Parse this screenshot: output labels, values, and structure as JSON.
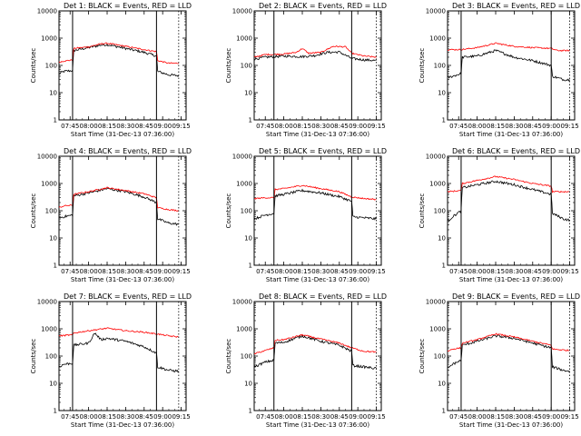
{
  "figure": {
    "common": {
      "ylabel": "Counts/sec",
      "xlabel": "Start Time (31-Dec-13 07:36:00)",
      "ylim": [
        1,
        10000
      ],
      "y_scale": "log",
      "y_ticks": [
        1,
        10,
        100,
        1000,
        10000
      ],
      "y_tick_labels": [
        "1",
        "10",
        "100",
        "1000",
        "10000"
      ],
      "x_ticks": [
        "07:45",
        "08:00",
        "08:15",
        "08:30",
        "08:45",
        "09:00",
        "09:15"
      ],
      "series_colors": {
        "events": "#000000",
        "lld": "#ff0000"
      }
    }
  },
  "chart_data": [
    {
      "type": "line",
      "title": "Det 1: BLACK = Events, RED = LLD",
      "xlim": [
        "07:36",
        "09:19"
      ],
      "vlines_solid": [
        "07:47",
        "08:55"
      ],
      "vlines_dotted": [
        "09:13"
      ],
      "series": [
        {
          "key": "events",
          "points": [
            [
              "07:36",
              50
            ],
            [
              "07:40",
              60
            ],
            [
              "07:47",
              65
            ],
            [
              "07:48",
              350
            ],
            [
              "08:00",
              450
            ],
            [
              "08:10",
              560
            ],
            [
              "08:15",
              580
            ],
            [
              "08:30",
              420
            ],
            [
              "08:45",
              300
            ],
            [
              "08:55",
              220
            ],
            [
              "08:56",
              60
            ],
            [
              "09:05",
              45
            ],
            [
              "09:13",
              42
            ]
          ]
        },
        {
          "key": "lld",
          "points": [
            [
              "07:36",
              130
            ],
            [
              "07:40",
              145
            ],
            [
              "07:47",
              160
            ],
            [
              "07:48",
              420
            ],
            [
              "08:00",
              480
            ],
            [
              "08:10",
              620
            ],
            [
              "08:15",
              650
            ],
            [
              "08:30",
              500
            ],
            [
              "08:45",
              380
            ],
            [
              "08:55",
              320
            ],
            [
              "08:56",
              150
            ],
            [
              "09:05",
              120
            ],
            [
              "09:13",
              120
            ]
          ]
        }
      ]
    },
    {
      "type": "line",
      "title": "Det 2: BLACK = Events, RED = LLD",
      "xlim": [
        "07:36",
        "09:19"
      ],
      "vlines_solid": [
        "07:52",
        "08:55"
      ],
      "vlines_dotted": [
        "09:15"
      ],
      "series": [
        {
          "key": "events",
          "points": [
            [
              "07:36",
              170
            ],
            [
              "07:45",
              200
            ],
            [
              "08:00",
              220
            ],
            [
              "08:15",
              210
            ],
            [
              "08:25",
              230
            ],
            [
              "08:35",
              300
            ],
            [
              "08:45",
              310
            ],
            [
              "08:55",
              180
            ],
            [
              "09:05",
              160
            ],
            [
              "09:15",
              150
            ]
          ]
        },
        {
          "key": "lld",
          "points": [
            [
              "07:36",
              200
            ],
            [
              "07:45",
              250
            ],
            [
              "08:00",
              260
            ],
            [
              "08:10",
              300
            ],
            [
              "08:15",
              420
            ],
            [
              "08:20",
              280
            ],
            [
              "08:30",
              300
            ],
            [
              "08:40",
              500
            ],
            [
              "08:50",
              480
            ],
            [
              "08:55",
              280
            ],
            [
              "09:05",
              220
            ],
            [
              "09:15",
              200
            ]
          ]
        }
      ]
    },
    {
      "type": "line",
      "title": "Det 3: BLACK = Events, RED = LLD",
      "xlim": [
        "07:36",
        "09:19"
      ],
      "vlines_solid": [
        "07:47",
        "09:00"
      ],
      "vlines_dotted": [
        "09:15"
      ],
      "series": [
        {
          "key": "events",
          "points": [
            [
              "07:36",
              35
            ],
            [
              "07:40",
              40
            ],
            [
              "07:47",
              50
            ],
            [
              "07:48",
              200
            ],
            [
              "08:00",
              220
            ],
            [
              "08:15",
              350
            ],
            [
              "08:30",
              200
            ],
            [
              "08:45",
              150
            ],
            [
              "09:00",
              100
            ],
            [
              "09:01",
              40
            ],
            [
              "09:10",
              30
            ],
            [
              "09:15",
              30
            ]
          ]
        },
        {
          "key": "lld",
          "points": [
            [
              "07:36",
              380
            ],
            [
              "07:47",
              380
            ],
            [
              "08:00",
              450
            ],
            [
              "08:15",
              650
            ],
            [
              "08:30",
              500
            ],
            [
              "08:45",
              450
            ],
            [
              "09:00",
              420
            ],
            [
              "09:05",
              350
            ],
            [
              "09:15",
              350
            ]
          ]
        }
      ]
    },
    {
      "type": "line",
      "title": "Det 4: BLACK = Events, RED = LLD",
      "xlim": [
        "07:36",
        "09:19"
      ],
      "vlines_solid": [
        "07:47",
        "08:55"
      ],
      "vlines_dotted": [
        "09:13"
      ],
      "series": [
        {
          "key": "events",
          "points": [
            [
              "07:36",
              55
            ],
            [
              "07:40",
              60
            ],
            [
              "07:47",
              70
            ],
            [
              "07:48",
              350
            ],
            [
              "08:00",
              450
            ],
            [
              "08:15",
              650
            ],
            [
              "08:30",
              500
            ],
            [
              "08:45",
              320
            ],
            [
              "08:55",
              200
            ],
            [
              "08:56",
              50
            ],
            [
              "09:05",
              35
            ],
            [
              "09:13",
              32
            ]
          ]
        },
        {
          "key": "lld",
          "points": [
            [
              "07:36",
              130
            ],
            [
              "07:40",
              150
            ],
            [
              "07:47",
              160
            ],
            [
              "07:48",
              400
            ],
            [
              "08:00",
              500
            ],
            [
              "08:15",
              700
            ],
            [
              "08:30",
              550
            ],
            [
              "08:45",
              420
            ],
            [
              "08:55",
              300
            ],
            [
              "08:56",
              130
            ],
            [
              "09:05",
              110
            ],
            [
              "09:13",
              100
            ]
          ]
        }
      ]
    },
    {
      "type": "line",
      "title": "Det 5: BLACK = Events, RED = LLD",
      "xlim": [
        "07:36",
        "09:19"
      ],
      "vlines_solid": [
        "07:52",
        "08:55"
      ],
      "vlines_dotted": [
        "09:15"
      ],
      "series": [
        {
          "key": "events",
          "points": [
            [
              "07:36",
              50
            ],
            [
              "07:45",
              70
            ],
            [
              "07:52",
              80
            ],
            [
              "07:53",
              350
            ],
            [
              "08:00",
              400
            ],
            [
              "08:15",
              550
            ],
            [
              "08:30",
              450
            ],
            [
              "08:45",
              330
            ],
            [
              "08:55",
              220
            ],
            [
              "08:56",
              60
            ],
            [
              "09:05",
              55
            ],
            [
              "09:15",
              50
            ]
          ]
        },
        {
          "key": "lld",
          "points": [
            [
              "07:36",
              280
            ],
            [
              "07:45",
              300
            ],
            [
              "07:52",
              300
            ],
            [
              "07:53",
              600
            ],
            [
              "08:00",
              650
            ],
            [
              "08:15",
              850
            ],
            [
              "08:30",
              650
            ],
            [
              "08:45",
              500
            ],
            [
              "08:55",
              320
            ],
            [
              "09:05",
              280
            ],
            [
              "09:15",
              260
            ]
          ]
        }
      ]
    },
    {
      "type": "line",
      "title": "Det 6: BLACK = Events, RED = LLD",
      "xlim": [
        "07:36",
        "09:19"
      ],
      "vlines_solid": [
        "07:47",
        "09:00"
      ],
      "vlines_dotted": [
        "09:15"
      ],
      "series": [
        {
          "key": "events",
          "points": [
            [
              "07:36",
              40
            ],
            [
              "07:40",
              60
            ],
            [
              "07:47",
              100
            ],
            [
              "07:48",
              700
            ],
            [
              "08:00",
              900
            ],
            [
              "08:15",
              1200
            ],
            [
              "08:30",
              900
            ],
            [
              "08:45",
              600
            ],
            [
              "09:00",
              400
            ],
            [
              "09:01",
              80
            ],
            [
              "09:10",
              50
            ],
            [
              "09:15",
              45
            ]
          ]
        },
        {
          "key": "lld",
          "points": [
            [
              "07:36",
              500
            ],
            [
              "07:47",
              550
            ],
            [
              "07:48",
              1000
            ],
            [
              "08:00",
              1300
            ],
            [
              "08:15",
              1800
            ],
            [
              "08:30",
              1400
            ],
            [
              "08:45",
              1000
            ],
            [
              "09:00",
              800
            ],
            [
              "09:01",
              500
            ],
            [
              "09:15",
              500
            ]
          ]
        }
      ]
    },
    {
      "type": "line",
      "title": "Det 7: BLACK = Events, RED = LLD",
      "xlim": [
        "07:36",
        "09:19"
      ],
      "vlines_solid": [
        "07:47",
        "08:55"
      ],
      "vlines_dotted": [
        "09:13"
      ],
      "series": [
        {
          "key": "events",
          "points": [
            [
              "07:36",
              40
            ],
            [
              "07:40",
              50
            ],
            [
              "07:47",
              55
            ],
            [
              "07:48",
              250
            ],
            [
              "08:00",
              300
            ],
            [
              "08:05",
              700
            ],
            [
              "08:10",
              400
            ],
            [
              "08:15",
              450
            ],
            [
              "08:30",
              350
            ],
            [
              "08:45",
              220
            ],
            [
              "08:55",
              130
            ],
            [
              "08:56",
              40
            ],
            [
              "09:05",
              30
            ],
            [
              "09:13",
              28
            ]
          ]
        },
        {
          "key": "lld",
          "points": [
            [
              "07:36",
              550
            ],
            [
              "07:47",
              600
            ],
            [
              "07:48",
              700
            ],
            [
              "08:00",
              850
            ],
            [
              "08:15",
              1050
            ],
            [
              "08:30",
              850
            ],
            [
              "08:45",
              750
            ],
            [
              "08:55",
              650
            ],
            [
              "09:05",
              550
            ],
            [
              "09:13",
              500
            ]
          ]
        }
      ]
    },
    {
      "type": "line",
      "title": "Det 8: BLACK = Events, RED = LLD",
      "xlim": [
        "07:36",
        "09:19"
      ],
      "vlines_solid": [
        "07:52",
        "08:55"
      ],
      "vlines_dotted": [
        "09:15"
      ],
      "series": [
        {
          "key": "events",
          "points": [
            [
              "07:36",
              40
            ],
            [
              "07:45",
              60
            ],
            [
              "07:52",
              70
            ],
            [
              "07:53",
              300
            ],
            [
              "08:00",
              320
            ],
            [
              "08:15",
              550
            ],
            [
              "08:30",
              350
            ],
            [
              "08:45",
              250
            ],
            [
              "08:55",
              150
            ],
            [
              "08:56",
              45
            ],
            [
              "09:05",
              40
            ],
            [
              "09:15",
              35
            ]
          ]
        },
        {
          "key": "lld",
          "points": [
            [
              "07:36",
              120
            ],
            [
              "07:45",
              160
            ],
            [
              "07:52",
              200
            ],
            [
              "07:53",
              380
            ],
            [
              "08:00",
              400
            ],
            [
              "08:15",
              600
            ],
            [
              "08:30",
              420
            ],
            [
              "08:45",
              300
            ],
            [
              "08:55",
              200
            ],
            [
              "09:05",
              150
            ],
            [
              "09:15",
              140
            ]
          ]
        }
      ]
    },
    {
      "type": "line",
      "title": "Det 9: BLACK = Events, RED = LLD",
      "xlim": [
        "07:36",
        "09:19"
      ],
      "vlines_solid": [
        "07:47",
        "09:00"
      ],
      "vlines_dotted": [
        "09:15"
      ],
      "series": [
        {
          "key": "events",
          "points": [
            [
              "07:36",
              35
            ],
            [
              "07:40",
              50
            ],
            [
              "07:47",
              70
            ],
            [
              "07:48",
              250
            ],
            [
              "08:00",
              350
            ],
            [
              "08:15",
              550
            ],
            [
              "08:30",
              450
            ],
            [
              "08:45",
              300
            ],
            [
              "09:00",
              200
            ],
            [
              "09:01",
              40
            ],
            [
              "09:10",
              30
            ],
            [
              "09:15",
              28
            ]
          ]
        },
        {
          "key": "lld",
          "points": [
            [
              "07:36",
              150
            ],
            [
              "07:40",
              180
            ],
            [
              "07:47",
              200
            ],
            [
              "07:48",
              300
            ],
            [
              "08:00",
              400
            ],
            [
              "08:15",
              650
            ],
            [
              "08:30",
              500
            ],
            [
              "08:45",
              350
            ],
            [
              "09:00",
              250
            ],
            [
              "09:01",
              180
            ],
            [
              "09:15",
              160
            ]
          ]
        }
      ]
    }
  ]
}
